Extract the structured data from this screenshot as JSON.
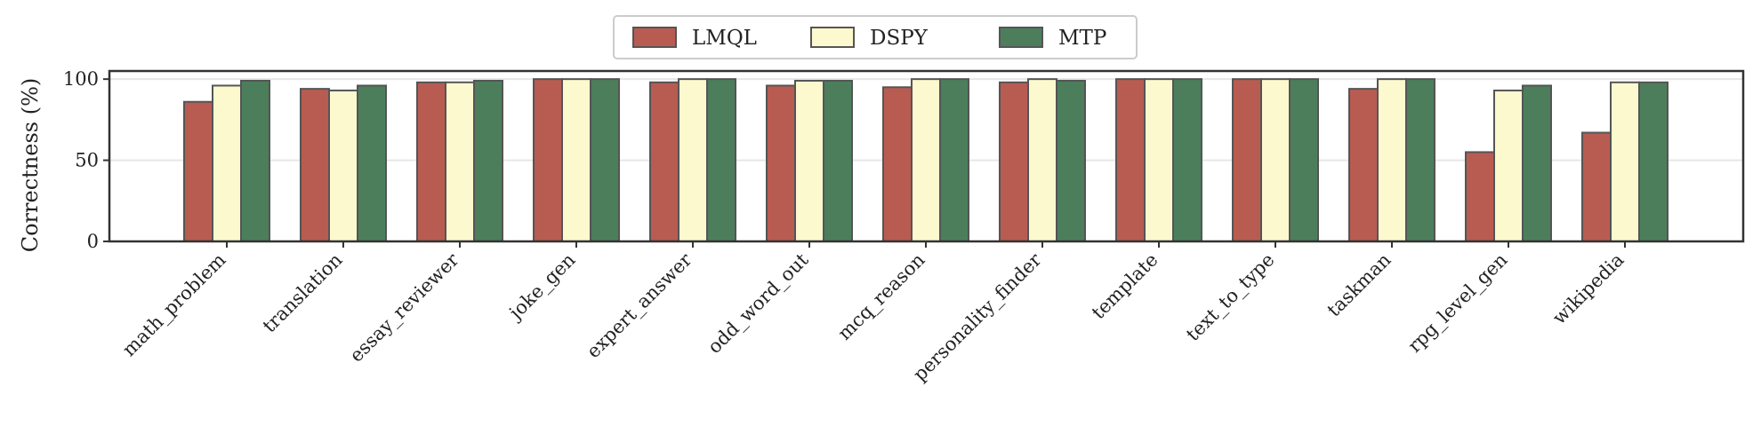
{
  "chart_data": {
    "type": "bar",
    "title": "",
    "xlabel": "",
    "ylabel": "Correctness (%)",
    "ylim": [
      0,
      105
    ],
    "yticks": [
      0,
      50,
      100
    ],
    "ytick_labels": [
      "0",
      "50",
      "100"
    ],
    "grid": true,
    "legend_position": "top-center",
    "categories": [
      "math_problem",
      "translation",
      "essay_reviewer",
      "joke_gen",
      "expert_answer",
      "odd_word_out",
      "mcq_reason",
      "personality_finder",
      "template",
      "text_to_type",
      "taskman",
      "rpg_level_gen",
      "wikipedia"
    ],
    "series": [
      {
        "name": "LMQL",
        "color": "#b85c52",
        "values": [
          86,
          94,
          98,
          100,
          98,
          96,
          95,
          98,
          100,
          100,
          94,
          55,
          67
        ]
      },
      {
        "name": "DSPY",
        "color": "#fdf9cf",
        "values": [
          96,
          93,
          98,
          100,
          100,
          99,
          100,
          100,
          100,
          100,
          100,
          93,
          98
        ]
      },
      {
        "name": "MTP",
        "color": "#4c7e5c",
        "values": [
          99,
          96,
          99,
          100,
          100,
          99,
          100,
          99,
          100,
          100,
          100,
          96,
          98
        ]
      }
    ]
  }
}
